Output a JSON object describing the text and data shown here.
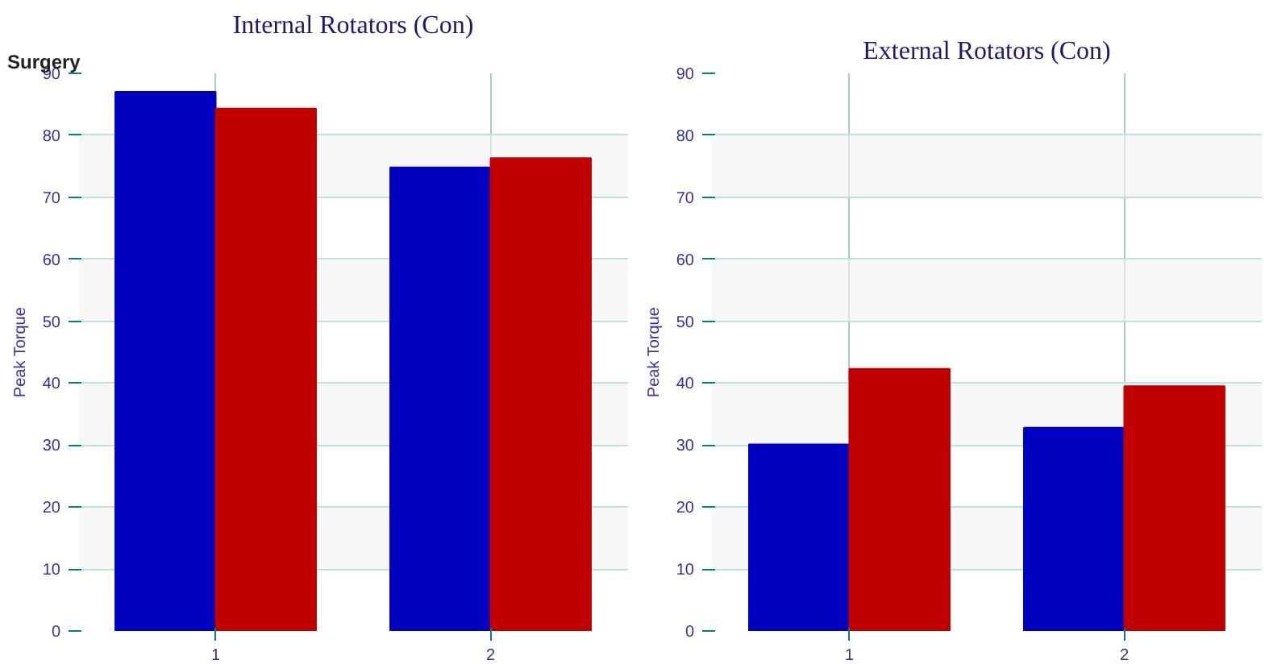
{
  "chart_data": [
    {
      "type": "bar",
      "title": "Internal Rotators (Con)",
      "ylabel": "Peak Torque",
      "annotations": [
        "Surgery"
      ],
      "categories": [
        "1",
        "2"
      ],
      "series": [
        {
          "color": "#0000c0",
          "values": [
            87.0,
            74.8
          ]
        },
        {
          "color": "#c00000",
          "values": [
            84.3,
            76.3
          ]
        }
      ],
      "ylim": [
        0,
        90
      ],
      "yticks": [
        0,
        10,
        20,
        30,
        40,
        50,
        60,
        70,
        80,
        90
      ],
      "grid": true
    },
    {
      "type": "bar",
      "title": "External Rotators (Con)",
      "ylabel": "Peak Torque",
      "categories": [
        "1",
        "2"
      ],
      "series": [
        {
          "color": "#0000c0",
          "values": [
            30.1,
            32.8
          ]
        },
        {
          "color": "#c00000",
          "values": [
            42.3,
            39.5
          ]
        }
      ],
      "ylim": [
        0,
        90
      ],
      "yticks": [
        0,
        10,
        20,
        30,
        40,
        50,
        60,
        70,
        80,
        90
      ],
      "grid": true
    }
  ]
}
